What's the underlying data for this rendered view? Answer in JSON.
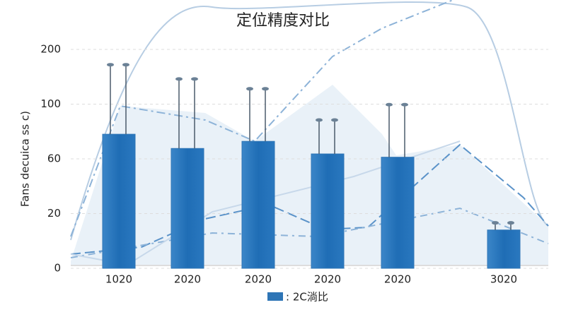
{
  "chart_data": {
    "type": "bar",
    "title": "定位精度对比",
    "y_label": "Fans decuica ss c)",
    "categories": [
      "1020",
      "2020",
      "2020",
      "2020",
      "2020",
      "3020"
    ],
    "series": [
      {
        "name": ": 2C淌比",
        "color": "#2e75b6",
        "values": [
          2.45,
          2.19,
          2.32,
          2.09,
          2.03,
          0.7
        ],
        "errors": [
          1.27,
          1.27,
          0.96,
          0.62,
          0.96,
          0.13
        ]
      }
    ],
    "ylim": [
      0,
      4
    ],
    "yticks": [
      {
        "value": 0,
        "label": "0"
      },
      {
        "value": 1,
        "label": "20"
      },
      {
        "value": 2,
        "label": "60"
      },
      {
        "value": 3,
        "label": "100"
      },
      {
        "value": 4,
        "label": "200"
      }
    ],
    "grid": true
  }
}
